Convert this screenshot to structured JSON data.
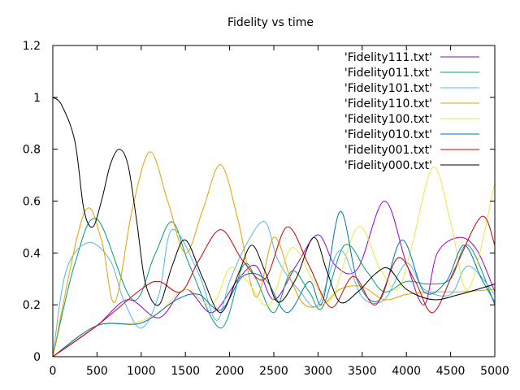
{
  "chart_data": {
    "type": "line",
    "title": "Fidelity vs time",
    "xlabel": "",
    "ylabel": "",
    "xlim": [
      0,
      5000
    ],
    "ylim": [
      0,
      1.2
    ],
    "xticks": [
      0,
      500,
      1000,
      1500,
      2000,
      2500,
      3000,
      3500,
      4000,
      4500,
      5000
    ],
    "yticks": [
      0,
      0.2,
      0.4,
      0.6,
      0.8,
      1,
      1.2
    ],
    "xtick_labels": [
      "0",
      "500",
      "1000",
      "1500",
      "2000",
      "2500",
      "3000",
      "3500",
      "4000",
      "4500",
      "5000"
    ],
    "ytick_labels": [
      "0",
      "0.2",
      "0.4",
      "0.6",
      "0.8",
      "1",
      "1.2"
    ],
    "grid": false,
    "legend_position": "top-right",
    "series": [
      {
        "name": "'Fidelity111.txt'",
        "color": "#9400d3",
        "x": [
          0,
          500,
          850,
          1200,
          1500,
          1800,
          2100,
          2300,
          2500,
          2750,
          3000,
          3200,
          3450,
          3750,
          4000,
          4200,
          4350,
          4600,
          4800,
          5000
        ],
        "y": [
          0.0,
          0.12,
          0.22,
          0.15,
          0.26,
          0.17,
          0.3,
          0.35,
          0.22,
          0.35,
          0.47,
          0.35,
          0.34,
          0.6,
          0.36,
          0.2,
          0.4,
          0.46,
          0.41,
          0.25
        ]
      },
      {
        "name": "'Fidelity011.txt'",
        "color": "#009e73",
        "x": [
          0,
          250,
          500,
          900,
          1150,
          1350,
          1550,
          1900,
          2150,
          2300,
          2500,
          2700,
          2900,
          3050,
          3300,
          3550,
          3750,
          4000,
          4250,
          4500,
          4700,
          5000
        ],
        "y": [
          0.0,
          0.36,
          0.53,
          0.22,
          0.39,
          0.52,
          0.35,
          0.11,
          0.35,
          0.3,
          0.17,
          0.33,
          0.25,
          0.19,
          0.43,
          0.33,
          0.25,
          0.29,
          0.28,
          0.3,
          0.43,
          0.2
        ]
      },
      {
        "name": "'Fidelity101.txt'",
        "color": "#56b4e9",
        "x": [
          0,
          150,
          400,
          650,
          800,
          1000,
          1200,
          1350,
          1650,
          1850,
          2000,
          2200,
          2400,
          2550,
          2800,
          3000,
          3250,
          3500,
          3750,
          4000,
          4200,
          4500,
          4700,
          5000
        ],
        "y": [
          0.0,
          0.33,
          0.44,
          0.37,
          0.22,
          0.11,
          0.24,
          0.49,
          0.32,
          0.14,
          0.29,
          0.44,
          0.52,
          0.37,
          0.25,
          0.2,
          0.41,
          0.23,
          0.22,
          0.36,
          0.26,
          0.24,
          0.35,
          0.24
        ]
      },
      {
        "name": "'Fidelity110.txt'",
        "color": "#e69f00",
        "x": [
          0,
          350,
          550,
          700,
          900,
          1100,
          1300,
          1500,
          1700,
          1900,
          2100,
          2300,
          2500,
          2700,
          2850,
          3050,
          3250,
          3500,
          3750,
          4000,
          4300,
          4600,
          5000
        ],
        "y": [
          0.0,
          0.55,
          0.45,
          0.21,
          0.57,
          0.79,
          0.6,
          0.4,
          0.57,
          0.74,
          0.52,
          0.23,
          0.46,
          0.29,
          0.2,
          0.2,
          0.26,
          0.27,
          0.22,
          0.24,
          0.25,
          0.25,
          0.26
        ]
      },
      {
        "name": "'Fidelity100.txt'",
        "color": "#f0e442",
        "x": [
          0,
          500,
          900,
          1200,
          1500,
          1800,
          2000,
          2200,
          2450,
          2700,
          2950,
          3150,
          3450,
          3700,
          3900,
          4050,
          4300,
          4500,
          4700,
          5000
        ],
        "y": [
          0.0,
          0.12,
          0.13,
          0.17,
          0.26,
          0.2,
          0.34,
          0.29,
          0.2,
          0.42,
          0.29,
          0.22,
          0.5,
          0.34,
          0.26,
          0.41,
          0.73,
          0.52,
          0.26,
          0.67
        ]
      },
      {
        "name": "'Fidelity010.txt'",
        "color": "#0072b2",
        "x": [
          0,
          500,
          1000,
          1400,
          1650,
          1900,
          2150,
          2400,
          2650,
          2900,
          3050,
          3250,
          3450,
          3700,
          3950,
          4200,
          4450,
          4650,
          4850,
          5000
        ],
        "y": [
          0.0,
          0.12,
          0.13,
          0.22,
          0.24,
          0.18,
          0.31,
          0.3,
          0.17,
          0.29,
          0.21,
          0.56,
          0.29,
          0.22,
          0.45,
          0.25,
          0.29,
          0.43,
          0.3,
          0.21
        ]
      },
      {
        "name": "'Fidelity001.txt'",
        "color": "#d00000",
        "x": [
          0,
          500,
          1000,
          1200,
          1450,
          1650,
          1900,
          2150,
          2400,
          2650,
          2900,
          3150,
          3400,
          3650,
          3900,
          4100,
          4300,
          4550,
          4850,
          5000
        ],
        "y": [
          0.0,
          0.12,
          0.26,
          0.29,
          0.25,
          0.37,
          0.49,
          0.37,
          0.3,
          0.5,
          0.35,
          0.19,
          0.31,
          0.2,
          0.38,
          0.29,
          0.17,
          0.34,
          0.54,
          0.43
        ]
      },
      {
        "name": "'Fidelity000.txt'",
        "color": "#000000",
        "x": [
          0,
          100,
          250,
          350,
          450,
          550,
          650,
          750,
          850,
          950,
          1050,
          1200,
          1350,
          1500,
          1700,
          1900,
          2100,
          2250,
          2400,
          2550,
          2750,
          2950,
          3100,
          3250,
          3450,
          3650,
          3800,
          4000,
          4300,
          4600,
          5000
        ],
        "y": [
          1.0,
          0.97,
          0.83,
          0.57,
          0.5,
          0.6,
          0.74,
          0.8,
          0.74,
          0.52,
          0.28,
          0.2,
          0.35,
          0.45,
          0.3,
          0.17,
          0.32,
          0.43,
          0.33,
          0.21,
          0.3,
          0.46,
          0.33,
          0.21,
          0.25,
          0.32,
          0.34,
          0.26,
          0.22,
          0.24,
          0.28
        ]
      }
    ]
  }
}
